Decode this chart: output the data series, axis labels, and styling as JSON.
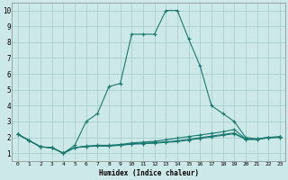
{
  "xlabel": "Humidex (Indice chaleur)",
  "background_color": "#cce8e8",
  "grid_color": "#aacece",
  "line_color": "#1a7a6e",
  "xlim": [
    -0.5,
    23.5
  ],
  "ylim": [
    0.5,
    10.5
  ],
  "xticks": [
    0,
    1,
    2,
    3,
    4,
    5,
    6,
    7,
    8,
    9,
    10,
    11,
    12,
    13,
    14,
    15,
    16,
    17,
    18,
    19,
    20,
    21,
    22,
    23
  ],
  "yticks": [
    1,
    2,
    3,
    4,
    5,
    6,
    7,
    8,
    9,
    10
  ],
  "series": [
    [
      2.2,
      1.8,
      1.4,
      1.35,
      1.0,
      1.5,
      3.0,
      3.5,
      5.2,
      5.4,
      8.5,
      8.5,
      8.5,
      10.0,
      10.0,
      8.2,
      6.5,
      4.0,
      3.5,
      3.0,
      2.0,
      1.9,
      2.0,
      2.0
    ],
    [
      2.2,
      1.8,
      1.4,
      1.35,
      1.0,
      1.35,
      1.45,
      1.5,
      1.5,
      1.55,
      1.65,
      1.7,
      1.75,
      1.85,
      1.95,
      2.05,
      2.15,
      2.25,
      2.35,
      2.5,
      1.9,
      1.9,
      2.0,
      2.05
    ],
    [
      2.2,
      1.8,
      1.4,
      1.35,
      1.0,
      1.35,
      1.43,
      1.47,
      1.47,
      1.52,
      1.6,
      1.63,
      1.67,
      1.72,
      1.78,
      1.88,
      1.98,
      2.08,
      2.18,
      2.28,
      1.88,
      1.88,
      1.98,
      2.02
    ],
    [
      2.2,
      1.8,
      1.4,
      1.35,
      1.0,
      1.35,
      1.42,
      1.45,
      1.45,
      1.5,
      1.57,
      1.6,
      1.63,
      1.68,
      1.73,
      1.83,
      1.93,
      2.03,
      2.13,
      2.23,
      1.87,
      1.87,
      1.97,
      2.01
    ]
  ]
}
